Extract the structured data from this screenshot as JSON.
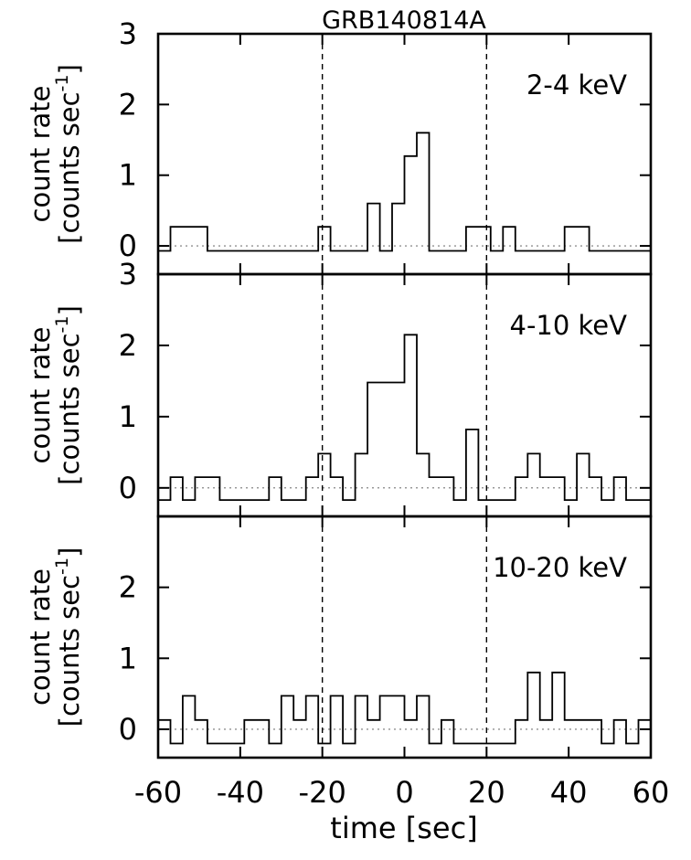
{
  "chart_data": {
    "title": "GRB140814A",
    "xlabel": "time [sec]",
    "ylabel_line1": "count rate",
    "ylabel_line2": "[counts sec",
    "ylabel_sup": "-1",
    "ylabel_close": "]",
    "xlim": [
      -60,
      60
    ],
    "xticks": [
      -60,
      -40,
      -20,
      0,
      20,
      40,
      60
    ],
    "xtick_labels": [
      "-60",
      "-40",
      "-20",
      "0",
      "20",
      "40",
      "60"
    ],
    "vlines": [
      -20,
      20
    ],
    "panels": [
      {
        "type": "step",
        "label": "2-4 keV",
        "ylim": [
          -0.4,
          3.0
        ],
        "yticks": [
          0,
          1,
          2,
          3
        ],
        "ytick_labels": [
          "0",
          "1",
          "2",
          "3"
        ],
        "bin_edges": [
          -60,
          -57,
          -54,
          -51,
          -48,
          -45,
          -42,
          -39,
          -36,
          -33,
          -30,
          -27,
          -24,
          -21,
          -18,
          -15,
          -12,
          -9,
          -6,
          -3,
          0,
          3,
          6,
          9,
          12,
          15,
          18,
          21,
          24,
          27,
          30,
          33,
          36,
          39,
          42,
          45,
          48,
          51,
          54,
          57,
          60
        ],
        "values": [
          -0.07,
          0.27,
          0.27,
          0.27,
          -0.07,
          -0.07,
          -0.07,
          -0.07,
          -0.07,
          -0.07,
          -0.07,
          -0.07,
          -0.07,
          0.27,
          -0.07,
          -0.07,
          -0.07,
          0.6,
          -0.07,
          0.6,
          1.27,
          1.6,
          -0.07,
          -0.07,
          -0.07,
          0.27,
          0.27,
          -0.07,
          0.27,
          -0.07,
          -0.07,
          -0.07,
          -0.07,
          0.27,
          0.27,
          -0.07,
          -0.07,
          -0.07,
          -0.07,
          -0.07
        ]
      },
      {
        "type": "step",
        "label": "4-10 keV",
        "ylim": [
          -0.4,
          3.0
        ],
        "yticks": [
          0,
          1,
          2,
          3
        ],
        "ytick_labels": [
          "0",
          "1",
          "2",
          "3"
        ],
        "bin_edges": [
          -60,
          -57,
          -54,
          -51,
          -48,
          -45,
          -42,
          -39,
          -36,
          -33,
          -30,
          -27,
          -24,
          -21,
          -18,
          -15,
          -12,
          -9,
          -6,
          -3,
          0,
          3,
          6,
          9,
          12,
          15,
          18,
          21,
          24,
          27,
          30,
          33,
          36,
          39,
          42,
          45,
          48,
          51,
          54,
          57,
          60
        ],
        "values": [
          -0.17,
          0.15,
          -0.17,
          0.15,
          0.15,
          -0.17,
          -0.17,
          -0.17,
          -0.17,
          0.15,
          -0.17,
          -0.17,
          0.15,
          0.48,
          0.15,
          -0.17,
          0.48,
          1.48,
          1.48,
          1.48,
          2.15,
          0.48,
          0.15,
          0.15,
          -0.17,
          0.82,
          -0.17,
          -0.17,
          -0.17,
          0.15,
          0.48,
          0.15,
          0.15,
          -0.17,
          0.48,
          0.15,
          -0.17,
          0.15,
          -0.17,
          -0.17
        ]
      },
      {
        "type": "step",
        "label": "10-20 keV",
        "ylim": [
          -0.4,
          3.0
        ],
        "yticks": [
          0,
          1,
          2
        ],
        "ytick_labels": [
          "0",
          "1",
          "2"
        ],
        "bin_edges": [
          -60,
          -57,
          -54,
          -51,
          -48,
          -45,
          -42,
          -39,
          -36,
          -33,
          -30,
          -27,
          -24,
          -21,
          -18,
          -15,
          -12,
          -9,
          -6,
          -3,
          0,
          3,
          6,
          9,
          12,
          15,
          18,
          21,
          24,
          27,
          30,
          33,
          36,
          39,
          42,
          45,
          48,
          51,
          54,
          57,
          60
        ],
        "values": [
          0.13,
          -0.2,
          0.47,
          0.13,
          -0.2,
          -0.2,
          -0.2,
          0.13,
          0.13,
          -0.2,
          0.47,
          0.13,
          0.47,
          -0.2,
          0.47,
          -0.2,
          0.47,
          0.13,
          0.47,
          0.47,
          0.13,
          0.47,
          -0.2,
          0.13,
          -0.2,
          -0.2,
          -0.2,
          -0.2,
          -0.2,
          0.13,
          0.8,
          0.13,
          0.8,
          0.13,
          0.13,
          0.13,
          -0.2,
          0.13,
          -0.2,
          0.13
        ]
      }
    ]
  }
}
